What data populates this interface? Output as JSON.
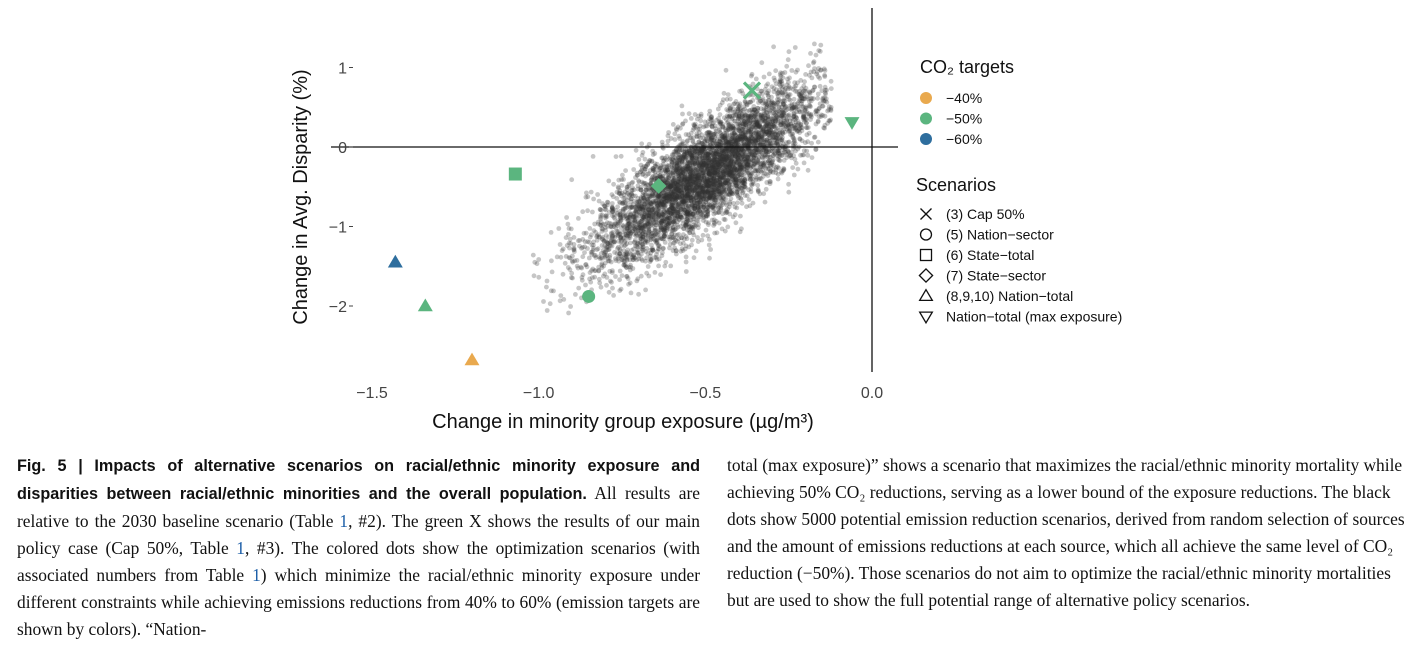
{
  "chart_data": {
    "type": "scatter",
    "xlabel": "Change in minority group exposure (µg/m³)",
    "ylabel": "Change in Avg. Disparity (%)",
    "xlim": [
      -1.5,
      0.0
    ],
    "ylim": [
      -2.7,
      1.5
    ],
    "x_ticks": [
      "−1.5",
      "−1.0",
      "−0.5",
      "0.0"
    ],
    "y_ticks": [
      "−2",
      "−1",
      "0",
      "1"
    ],
    "grid": false,
    "reference_lines": {
      "horizontal_at": 0,
      "vertical_at": 0
    },
    "background_cloud": {
      "count": 5000,
      "color": "#333333",
      "trend": {
        "slope_disparity_per_exposure": 2.7,
        "x_center": -0.5,
        "y_center": -0.35
      }
    },
    "legend_colors": {
      "title": "CO₂ targets",
      "entries": [
        {
          "label": "−40%",
          "color": "#e9a94e"
        },
        {
          "label": "−50%",
          "color": "#5bb57f"
        },
        {
          "label": "−60%",
          "color": "#2e6e9e"
        }
      ]
    },
    "legend_shapes": {
      "title": "Scenarios",
      "entries": [
        {
          "label": "(3) Cap 50%",
          "marker": "x"
        },
        {
          "label": "(5) Nation−sector",
          "marker": "circle"
        },
        {
          "label": "(6) State−total",
          "marker": "square"
        },
        {
          "label": "(7) State−sector",
          "marker": "diamond"
        },
        {
          "label": "(8,9,10) Nation−total",
          "marker": "triangle-up"
        },
        {
          "label": "Nation−total (max exposure)",
          "marker": "triangle-down"
        }
      ]
    },
    "series": [
      {
        "x": -0.36,
        "y": 0.71,
        "marker": "x",
        "color": "#5bb57f"
      },
      {
        "x": -0.06,
        "y": 0.31,
        "marker": "triangle-down",
        "color": "#5bb57f"
      },
      {
        "x": -1.07,
        "y": -0.34,
        "marker": "square",
        "color": "#5bb57f"
      },
      {
        "x": -0.64,
        "y": -0.49,
        "marker": "diamond",
        "color": "#5bb57f"
      },
      {
        "x": -0.85,
        "y": -1.88,
        "marker": "circle",
        "color": "#5bb57f"
      },
      {
        "x": -1.43,
        "y": -1.45,
        "marker": "triangle-up",
        "color": "#2e6e9e"
      },
      {
        "x": -1.34,
        "y": -2.0,
        "marker": "triangle-up",
        "color": "#5bb57f"
      },
      {
        "x": -1.2,
        "y": -2.68,
        "marker": "triangle-up",
        "color": "#e9a94e"
      }
    ]
  },
  "caption": {
    "fig_label": "Fig. 5 | Impacts of alternative scenarios on racial/ethnic minority exposure and disparities between racial/ethnic minorities and the overall population.",
    "left_1": " All results are relative to the 2030 baseline scenario (Table ",
    "ref_1a": "1",
    "left_2": ", #2). The green X shows the results of our main policy case (Cap 50%, Table ",
    "ref_1b": "1",
    "left_3": ", #3). The colored dots show the optimization scenarios (with associated numbers from Table ",
    "ref_1c": "1",
    "left_4": ") which minimize the racial/ethnic minority exposure under different constraints while achieving emissions reductions from 40% to 60% (emission targets are shown by colors). “Nation-",
    "right": "total (max exposure)” shows a scenario that maximizes the racial/ethnic minority mortality while achieving 50% CO₂ reductions, serving as a lower bound of the exposure reductions. The black dots show 5000 potential emission reduction scenarios, derived from random selection of sources and the amount of emissions reductions at each source, which all achieve the same level of CO₂ reduction (−50%). Those scenarios do not aim to optimize the racial/ethnic minority mortalities but are used to show the full potential range of alternative policy scenarios."
  }
}
